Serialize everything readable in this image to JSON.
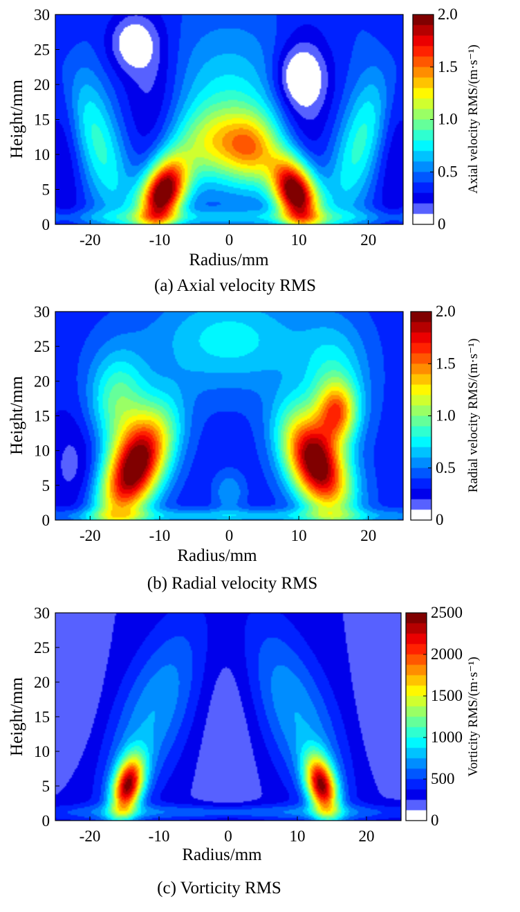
{
  "figure": {
    "panels": [
      {
        "id": "a",
        "caption": "(a) Axial velocity RMS",
        "colorbar_label": "Axial velocity RMS/(m·s⁻¹)",
        "colorbar_ticks": [
          "0",
          "0.5",
          "1.0",
          "1.5",
          "2.0"
        ]
      },
      {
        "id": "b",
        "caption": "(b) Radial velocity RMS",
        "colorbar_label": "Radial velocity RMS/(m·s⁻¹)",
        "colorbar_ticks": [
          "0",
          "0.5",
          "1.0",
          "1.5",
          "2.0"
        ]
      },
      {
        "id": "c",
        "caption": "(c) Vorticity RMS",
        "colorbar_label": "Vorticity RMS/(m·s⁻¹)",
        "colorbar_ticks": [
          "0",
          "500",
          "1000",
          "1500",
          "2000",
          "2500"
        ]
      }
    ]
  },
  "chart_data": [
    {
      "type": "heatmap",
      "title": "(a) Axial velocity RMS",
      "xlabel": "Radius/mm",
      "ylabel": "Height/mm",
      "xlim": [
        -25,
        25
      ],
      "ylim": [
        0,
        30
      ],
      "xticks": [
        -20,
        -10,
        0,
        10,
        20
      ],
      "xtick_labels": [
        "-20",
        "-10",
        "0",
        "10",
        "20"
      ],
      "yticks": [
        0,
        5,
        10,
        15,
        20,
        25,
        30
      ],
      "ytick_labels": [
        "0",
        "5",
        "10",
        "15",
        "20",
        "25",
        "30"
      ],
      "colorbar": {
        "label": "Axial velocity RMS/(m·s⁻¹)",
        "range": [
          0,
          2.0
        ],
        "ticks": [
          0,
          0.5,
          1.0,
          1.5,
          2.0
        ],
        "colormap": "jet"
      },
      "background_value": 0.4,
      "features": [
        {
          "x": -9.5,
          "y": 4.5,
          "sx": 2.2,
          "sy": 3.5,
          "value": 1.75,
          "tilt": 0.25
        },
        {
          "x": 9.5,
          "y": 4.5,
          "sx": 2.2,
          "sy": 3.5,
          "value": 1.75,
          "tilt": -0.25
        },
        {
          "x": -1,
          "y": 11.5,
          "sx": 4.5,
          "sy": 3.5,
          "value": 0.65,
          "tilt": 0
        },
        {
          "x": 3.5,
          "y": 10.5,
          "sx": 2.5,
          "sy": 3.5,
          "value": 0.5,
          "tilt": 0
        },
        {
          "x": 0,
          "y": 17,
          "sx": 6,
          "sy": 7,
          "value": 0.35,
          "tilt": 0
        },
        {
          "x": -19,
          "y": 12,
          "sx": 2.5,
          "sy": 8,
          "value": 0.45,
          "tilt": -0.3
        },
        {
          "x": 19,
          "y": 12,
          "sx": 2.5,
          "sy": 8,
          "value": 0.45,
          "tilt": 0.3
        },
        {
          "x": -11,
          "y": 18,
          "sx": 3,
          "sy": 8,
          "value": -0.25,
          "tilt": 0
        },
        {
          "x": 11,
          "y": 18,
          "sx": 3,
          "sy": 8,
          "value": -0.25,
          "tilt": 0
        },
        {
          "x": -23.5,
          "y": 12,
          "sx": 2,
          "sy": 14,
          "value": -0.2,
          "tilt": 0
        },
        {
          "x": 23.5,
          "y": 12,
          "sx": 2,
          "sy": 14,
          "value": -0.2,
          "tilt": 0
        },
        {
          "x": -14,
          "y": 26,
          "sx": 2.5,
          "sy": 3,
          "value": -0.35,
          "tilt": 0
        },
        {
          "x": 10,
          "y": 21,
          "sx": 2.5,
          "sy": 3,
          "value": -0.35,
          "tilt": 0
        },
        {
          "x": 0,
          "y": 1,
          "sx": 25,
          "sy": 0.8,
          "value": 0.25,
          "tilt": 0
        }
      ]
    },
    {
      "type": "heatmap",
      "title": "(b) Radial velocity RMS",
      "xlabel": "Radius/mm",
      "ylabel": "Height/mm",
      "xlim": [
        -25,
        25
      ],
      "ylim": [
        0,
        30
      ],
      "xticks": [
        -20,
        -10,
        0,
        10,
        20
      ],
      "xtick_labels": [
        "-20",
        "-10",
        "0",
        "10",
        "20"
      ],
      "yticks": [
        0,
        5,
        10,
        15,
        20,
        25,
        30
      ],
      "ytick_labels": [
        "0",
        "5",
        "10",
        "15",
        "20",
        "25",
        "30"
      ],
      "colorbar": {
        "label": "Radial velocity RMS/(m·s⁻¹)",
        "range": [
          0,
          2.0
        ],
        "ticks": [
          0,
          0.5,
          1.0,
          1.5,
          2.0
        ],
        "colormap": "jet"
      },
      "background_value": 0.35,
      "features": [
        {
          "x": -13.5,
          "y": 7.5,
          "sx": 3.0,
          "sy": 5.5,
          "value": 1.7,
          "tilt": 0.35
        },
        {
          "x": 12.5,
          "y": 8,
          "sx": 3.0,
          "sy": 5,
          "value": 1.7,
          "tilt": -0.3
        },
        {
          "x": 15.5,
          "y": 15.5,
          "sx": 2,
          "sy": 3,
          "value": 0.9,
          "tilt": 0
        },
        {
          "x": -16,
          "y": 17,
          "sx": 3,
          "sy": 5,
          "value": 0.6,
          "tilt": 0
        },
        {
          "x": 15,
          "y": 20,
          "sx": 3.5,
          "sy": 6,
          "value": 0.4,
          "tilt": 0
        },
        {
          "x": 0,
          "y": 26,
          "sx": 8,
          "sy": 5,
          "value": 0.4,
          "tilt": 0
        },
        {
          "x": 0,
          "y": 4,
          "sx": 1.5,
          "sy": 2,
          "value": 0.25,
          "tilt": 0
        },
        {
          "x": 0,
          "y": 0.6,
          "sx": 25,
          "sy": 0.7,
          "value": 0.3,
          "tilt": 0
        },
        {
          "x": -22,
          "y": 8,
          "sx": 3,
          "sy": 6,
          "value": -0.2,
          "tilt": 0
        }
      ]
    },
    {
      "type": "heatmap",
      "title": "(c) Vorticity RMS",
      "xlabel": "Radius/mm",
      "ylabel": "Height/mm",
      "xlim": [
        -25,
        25
      ],
      "ylim": [
        0,
        30
      ],
      "xticks": [
        -20,
        -10,
        0,
        10,
        20
      ],
      "xtick_labels": [
        "-20",
        "-10",
        "0",
        "10",
        "20"
      ],
      "yticks": [
        0,
        5,
        10,
        15,
        20,
        25,
        30
      ],
      "ytick_labels": [
        "0",
        "5",
        "10",
        "15",
        "20",
        "25",
        "30"
      ],
      "colorbar": {
        "label": "Vorticity RMS/(m·s⁻¹)",
        "range": [
          0,
          2500
        ],
        "ticks": [
          0,
          500,
          1000,
          1500,
          2000,
          2500
        ],
        "colormap": "jet"
      },
      "background_value": 250,
      "features": [
        {
          "x": -14.5,
          "y": 5,
          "sx": 1.5,
          "sy": 3,
          "value": 1900,
          "tilt": 0.2
        },
        {
          "x": 13.5,
          "y": 5,
          "sx": 1.5,
          "sy": 3,
          "value": 1900,
          "tilt": -0.2
        },
        {
          "x": -11,
          "y": 15,
          "sx": 4,
          "sy": 10,
          "value": 500,
          "tilt": 0.35
        },
        {
          "x": 10,
          "y": 15,
          "sx": 4,
          "sy": 10,
          "value": 500,
          "tilt": -0.35
        },
        {
          "x": 0,
          "y": 15,
          "sx": 3,
          "sy": 14,
          "value": -120,
          "tilt": 0
        },
        {
          "x": -22,
          "y": 18,
          "sx": 3,
          "sy": 8,
          "value": -100,
          "tilt": 0
        },
        {
          "x": 22,
          "y": 14,
          "sx": 3,
          "sy": 8,
          "value": -80,
          "tilt": 0
        },
        {
          "x": 0,
          "y": 1.2,
          "sx": 25,
          "sy": 0.8,
          "value": 350,
          "tilt": 0
        }
      ]
    }
  ]
}
